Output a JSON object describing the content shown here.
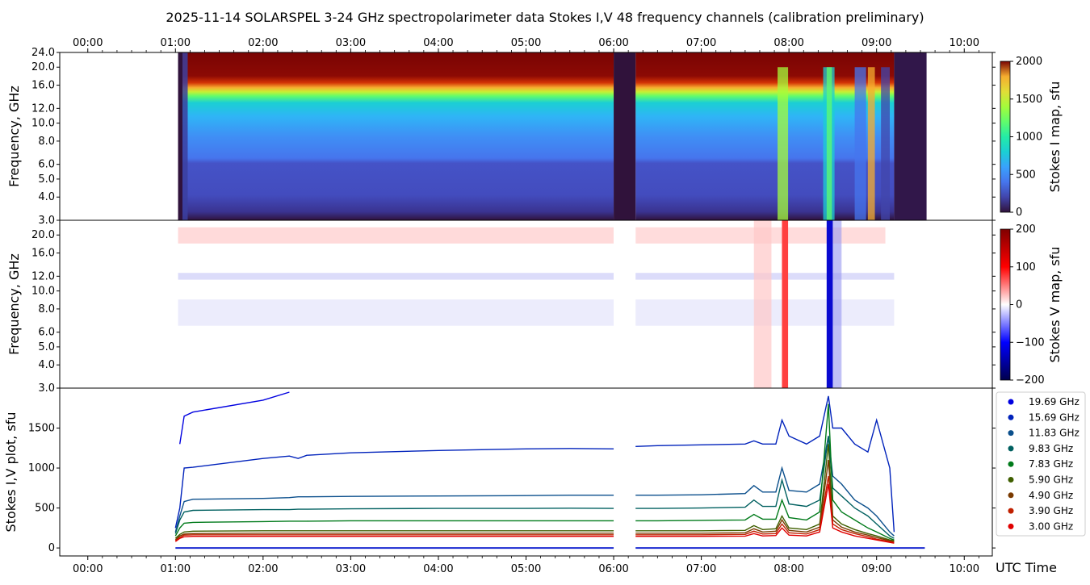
{
  "title": "2025-11-14  SOLARSPEL  3-24 GHz spectropolarimeter data   Stokes I,V   48 frequency channels   (calibration preliminary)",
  "x_axis": {
    "label": "UTC Time",
    "range_hours": [
      -0.32,
      10.32
    ],
    "tick_hours": [
      0,
      1,
      2,
      3,
      4,
      5,
      6,
      7,
      8,
      9,
      10
    ],
    "tick_labels": [
      "00:00",
      "01:00",
      "02:00",
      "03:00",
      "04:00",
      "05:00",
      "06:00",
      "07:00",
      "08:00",
      "09:00",
      "10:00"
    ]
  },
  "chart_data": [
    {
      "type": "heatmap",
      "name": "Stokes I map",
      "ylabel": "Frequency, GHz",
      "ytick_values": [
        3,
        4,
        5,
        6,
        8,
        10,
        12,
        16,
        20,
        24
      ],
      "ytick_labels": [
        "3.0",
        "4.0",
        "5.0",
        "6.0",
        "8.0",
        "10.0",
        "12.0",
        "16.0",
        "20.0",
        "24.0"
      ],
      "ylim": [
        3.0,
        24.0
      ],
      "yscale": "log",
      "colorbar": {
        "label": "Stokes I map, sfu",
        "range": [
          0,
          2000
        ],
        "ticks": [
          "0",
          "500",
          "1000",
          "1500",
          "2000"
        ],
        "colormap": "turbo"
      },
      "data_extent_hours": [
        1.03,
        9.57
      ],
      "gap_hours": [
        6.0,
        6.25
      ]
    },
    {
      "type": "heatmap",
      "name": "Stokes V map",
      "ylabel": "Frequency, GHz",
      "ytick_values": [
        3,
        4,
        5,
        6,
        8,
        10,
        12,
        16,
        20
      ],
      "ytick_labels": [
        "3.0",
        "4.0",
        "5.0",
        "6.0",
        "8.0",
        "10.0",
        "12.0",
        "16.0",
        "20.0"
      ],
      "ylim": [
        3.0,
        24.0
      ],
      "yscale": "log",
      "colorbar": {
        "label": "Stokes V map, sfu",
        "range": [
          -200,
          200
        ],
        "ticks": [
          "−200",
          "−100",
          "0",
          "100",
          "200"
        ],
        "colormap": "seismic"
      },
      "data_extent_hours": [
        1.03,
        9.57
      ],
      "gap_hours": [
        6.0,
        6.25
      ]
    },
    {
      "type": "scatter",
      "name": "Stokes I,V plot",
      "ylabel": "Stokes I,V plot, sfu",
      "ylim": [
        -100,
        2000
      ],
      "ytick_values": [
        0,
        500,
        1000,
        1500
      ],
      "ytick_labels": [
        "0",
        "500",
        "1000",
        "1500"
      ],
      "legend_position": "outside-right",
      "x_hours": [
        1.0,
        1.05,
        1.1,
        1.2,
        2.0,
        2.3,
        2.4,
        2.5,
        3.0,
        4.0,
        5.0,
        5.5,
        6.0,
        6.25,
        6.5,
        7.0,
        7.5,
        7.6,
        7.7,
        7.85,
        7.92,
        8.0,
        8.2,
        8.35,
        8.45,
        8.5,
        8.6,
        8.75,
        8.9,
        9.0,
        9.15,
        9.2
      ],
      "series": [
        {
          "name": "19.69 GHz",
          "color": "#0000e0",
          "values": [
            null,
            1300,
            1650,
            1700,
            1850,
            1950,
            null,
            null,
            null,
            null,
            null,
            null,
            null,
            null,
            null,
            null,
            null,
            null,
            null,
            null,
            null,
            null,
            null,
            null,
            null,
            null,
            null,
            null,
            null,
            null,
            null,
            null
          ]
        },
        {
          "name": "15.69 GHz",
          "color": "#0022bb",
          "values": [
            250,
            500,
            1000,
            1010,
            1120,
            1150,
            1120,
            1160,
            1190,
            1220,
            1240,
            1245,
            1240,
            1270,
            1280,
            1290,
            1300,
            1340,
            1300,
            1300,
            1600,
            1400,
            1300,
            1400,
            1900,
            1500,
            1500,
            1300,
            1200,
            1600,
            1000,
            200
          ]
        },
        {
          "name": "11.83 GHz",
          "color": "#0b4f8c",
          "values": [
            200,
            400,
            580,
            610,
            620,
            630,
            640,
            640,
            645,
            650,
            655,
            660,
            660,
            660,
            660,
            665,
            680,
            780,
            700,
            700,
            1000,
            720,
            700,
            800,
            1400,
            900,
            800,
            600,
            500,
            400,
            200,
            150
          ]
        },
        {
          "name": "9.83 GHz",
          "color": "#006060",
          "values": [
            180,
            350,
            450,
            470,
            480,
            480,
            485,
            485,
            490,
            495,
            495,
            498,
            495,
            495,
            495,
            500,
            510,
            600,
            520,
            520,
            850,
            550,
            520,
            600,
            1400,
            750,
            650,
            500,
            400,
            300,
            150,
            120
          ]
        },
        {
          "name": "7.83 GHz",
          "color": "#007a1a",
          "values": [
            150,
            250,
            310,
            320,
            330,
            335,
            335,
            335,
            340,
            340,
            340,
            340,
            340,
            340,
            340,
            345,
            350,
            420,
            360,
            360,
            600,
            380,
            350,
            450,
            1800,
            600,
            450,
            350,
            250,
            200,
            120,
            100
          ]
        },
        {
          "name": "5.90 GHz",
          "color": "#3f5f00",
          "values": [
            120,
            170,
            200,
            210,
            215,
            215,
            215,
            215,
            215,
            215,
            215,
            215,
            215,
            215,
            215,
            215,
            220,
            280,
            230,
            240,
            400,
            250,
            230,
            300,
            1300,
            400,
            300,
            230,
            180,
            150,
            100,
            90
          ]
        },
        {
          "name": "4.90 GHz",
          "color": "#7a3a00",
          "values": [
            100,
            150,
            175,
            180,
            185,
            185,
            185,
            185,
            185,
            185,
            185,
            185,
            185,
            185,
            185,
            185,
            190,
            240,
            200,
            210,
            350,
            220,
            200,
            260,
            1100,
            350,
            260,
            200,
            160,
            130,
            90,
            80
          ]
        },
        {
          "name": "3.90 GHz",
          "color": "#c02000",
          "values": [
            90,
            130,
            160,
            165,
            165,
            165,
            165,
            165,
            165,
            165,
            165,
            165,
            165,
            165,
            165,
            165,
            170,
            210,
            175,
            180,
            300,
            190,
            175,
            230,
            900,
            300,
            230,
            180,
            140,
            110,
            80,
            70
          ]
        },
        {
          "name": "3.00 GHz",
          "color": "#e00000",
          "values": [
            80,
            120,
            140,
            145,
            145,
            145,
            145,
            145,
            145,
            145,
            145,
            145,
            145,
            145,
            145,
            145,
            148,
            180,
            150,
            155,
            250,
            160,
            150,
            200,
            800,
            250,
            200,
            150,
            120,
            100,
            70,
            60
          ]
        }
      ],
      "stokes_v_baseline": {
        "values_range": [
          -60,
          60
        ]
      }
    }
  ]
}
